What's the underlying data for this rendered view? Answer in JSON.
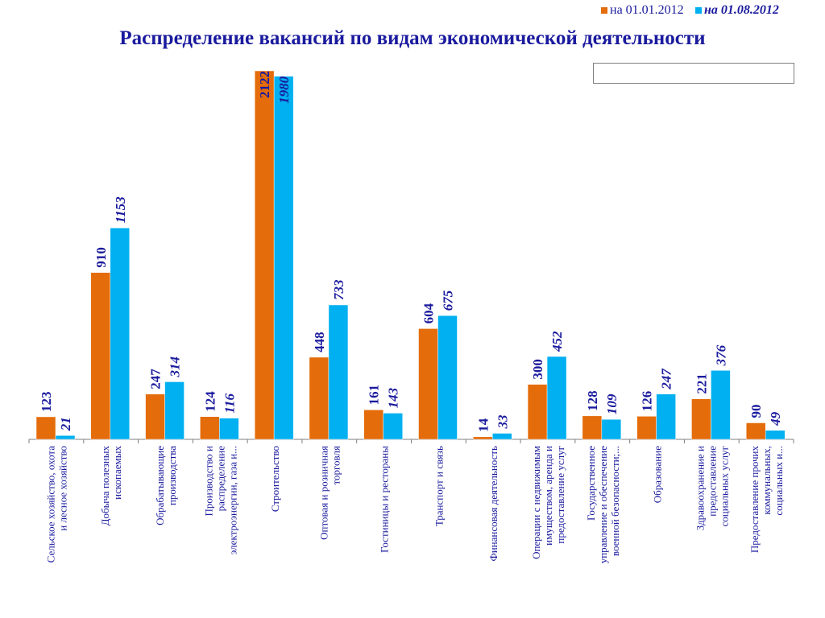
{
  "chart_data": {
    "type": "bar",
    "title": "Распределение вакансий  по видам экономической деятельности",
    "ylim": [
      0,
      2200
    ],
    "grid": false,
    "legend_position": "top-right",
    "categories": [
      [
        "Сельское хозяйство, охота",
        "и лесное хозяйство"
      ],
      [
        "Добыча полезных",
        "ископаемых"
      ],
      [
        "Обрабатывающие",
        "производства"
      ],
      [
        "Производство и",
        "распределение",
        "электроэнергии, газа и..."
      ],
      [
        "Строительство"
      ],
      [
        "Оптовая и розничная",
        "торговля"
      ],
      [
        "Гостиницы и рестораны"
      ],
      [
        "Транспорт и связь"
      ],
      [
        "Финансовая деятельность"
      ],
      [
        "Операции с недвижимым",
        "имуществом, аренда и",
        "предоставление услуг"
      ],
      [
        "Государственное",
        "управление и обеспечение",
        "военной безопасности;..."
      ],
      [
        "Образование"
      ],
      [
        "Здравоохранение и",
        "предоставление",
        "социальных услуг"
      ],
      [
        "Предоставление прочих",
        "коммунальных,",
        "социальных и..."
      ]
    ],
    "series": [
      {
        "name": "на 01.01.2012",
        "color": "#e46c0a",
        "values": [
          123,
          910,
          247,
          124,
          2122,
          448,
          161,
          604,
          14,
          300,
          128,
          126,
          221,
          90
        ]
      },
      {
        "name": "на 01.08.2012",
        "color": "#00b0f0",
        "values": [
          21,
          1153,
          314,
          116,
          1980,
          733,
          143,
          675,
          33,
          452,
          109,
          247,
          376,
          49
        ]
      }
    ]
  },
  "colors": {
    "text": "#1a1a9e",
    "axis": "#7f7f7f"
  }
}
